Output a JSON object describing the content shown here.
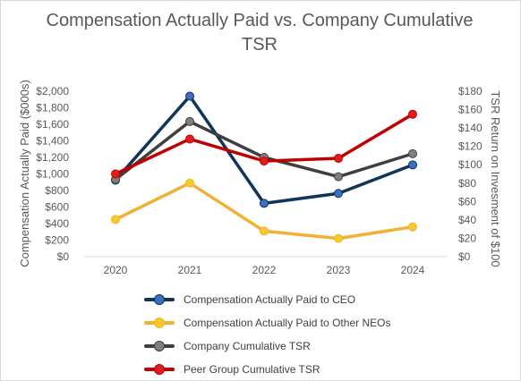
{
  "chart_data": {
    "type": "line",
    "title": "Compensation Actually Paid vs. Company Cumulative TSR",
    "title_lines": [
      "Compensation Actually Paid vs. Company Cumulative",
      "TSR"
    ],
    "categories": [
      "2020",
      "2021",
      "2022",
      "2023",
      "2024"
    ],
    "ylabel": "Compensation Actually Paid ($000s)",
    "y2label": "TSR Return on Invesment of $100",
    "ylim": [
      0,
      2000
    ],
    "y2lim": [
      0,
      180
    ],
    "y_ticks": [
      "$0",
      "$200",
      "$400",
      "$600",
      "$800",
      "$1,000",
      "$1,200",
      "$1,400",
      "$1,600",
      "$1,800",
      "$2,000"
    ],
    "y2_ticks": [
      "$0",
      "$20",
      "$40",
      "$60",
      "$80",
      "$100",
      "$120",
      "$140",
      "$160",
      "$180"
    ],
    "grid": false,
    "legend_position": "bottom",
    "series": [
      {
        "name": "Compensation Actually Paid to CEO",
        "axis": "left",
        "values": [
          925,
          1940,
          645,
          765,
          1110
        ],
        "color": "#0f3656",
        "marker": "#3b6fbf"
      },
      {
        "name": "Compensation Actually Paid to Other NEOs",
        "axis": "left",
        "values": [
          450,
          890,
          310,
          220,
          360
        ],
        "color": "#f0b232",
        "marker": "#f5cb27"
      },
      {
        "name": "Company Cumulative TSR",
        "axis": "right",
        "values": [
          84,
          147,
          108,
          87,
          112
        ],
        "color": "#3f3f3f",
        "marker": "#7f7f7f"
      },
      {
        "name": "Peer Group Cumulative TSR",
        "axis": "right",
        "values": [
          90,
          128,
          104,
          107,
          155
        ],
        "color": "#c00000",
        "marker": "#e21c1c"
      }
    ]
  }
}
